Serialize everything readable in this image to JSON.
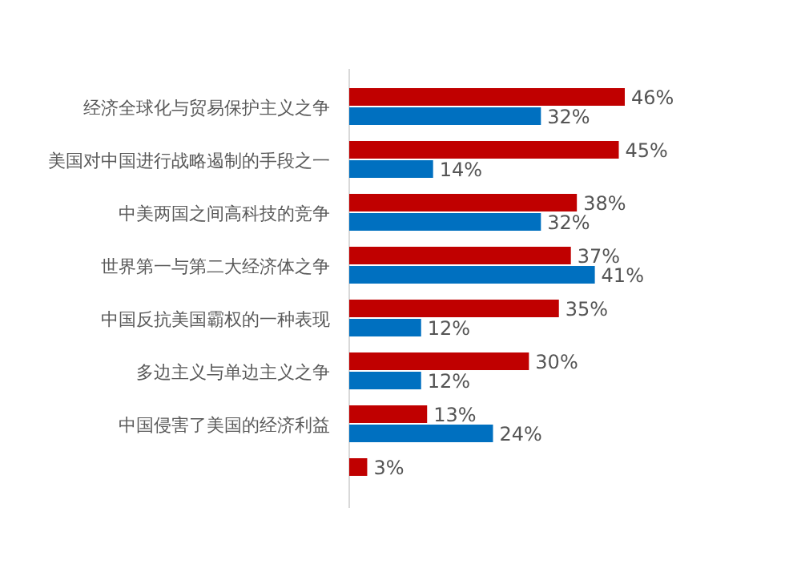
{
  "chart_data": {
    "type": "bar",
    "orientation": "horizontal",
    "categories": [
      "经济全球化与贸易保护主义之争",
      "美国对中国进行战略遏制的手段之一",
      "中美两国之间高科技的竞争",
      "世界第一与第二大经济体之争",
      "中国反抗美国霸权的一种表现",
      "多边主义与单边主义之争",
      "中国侵害了美国的经济利益",
      null
    ],
    "series": [
      {
        "color": "#c00000",
        "values": [
          46,
          45,
          38,
          37,
          35,
          30,
          13,
          3
        ],
        "value_labels": [
          "46%",
          "45%",
          "38%",
          "37%",
          "35%",
          "30%",
          "13%",
          "3%"
        ]
      },
      {
        "color": "#0070c0",
        "values": [
          32,
          14,
          32,
          41,
          12,
          12,
          24,
          null
        ],
        "value_labels": [
          "32%",
          "14%",
          "32%",
          "41%",
          "12%",
          "12%",
          "24%",
          null
        ]
      }
    ]
  }
}
